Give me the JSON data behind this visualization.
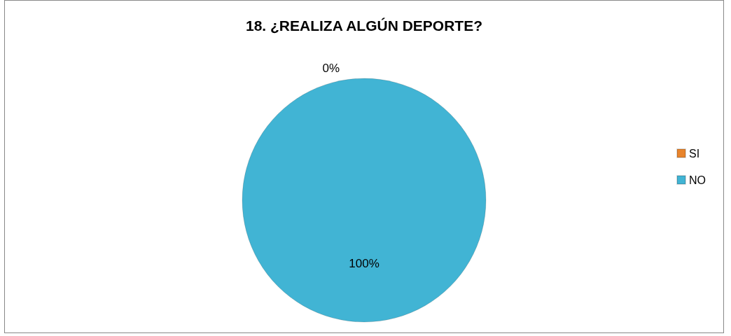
{
  "chart_data": {
    "type": "pie",
    "title": "18. ¿REALIZA ALGÚN DEPORTE?",
    "categories": [
      "SI",
      "NO"
    ],
    "values": [
      0,
      100
    ],
    "colors": [
      "#e8842c",
      "#41b4d4"
    ],
    "value_labels": [
      "0%",
      "100%"
    ],
    "legend": "right"
  }
}
